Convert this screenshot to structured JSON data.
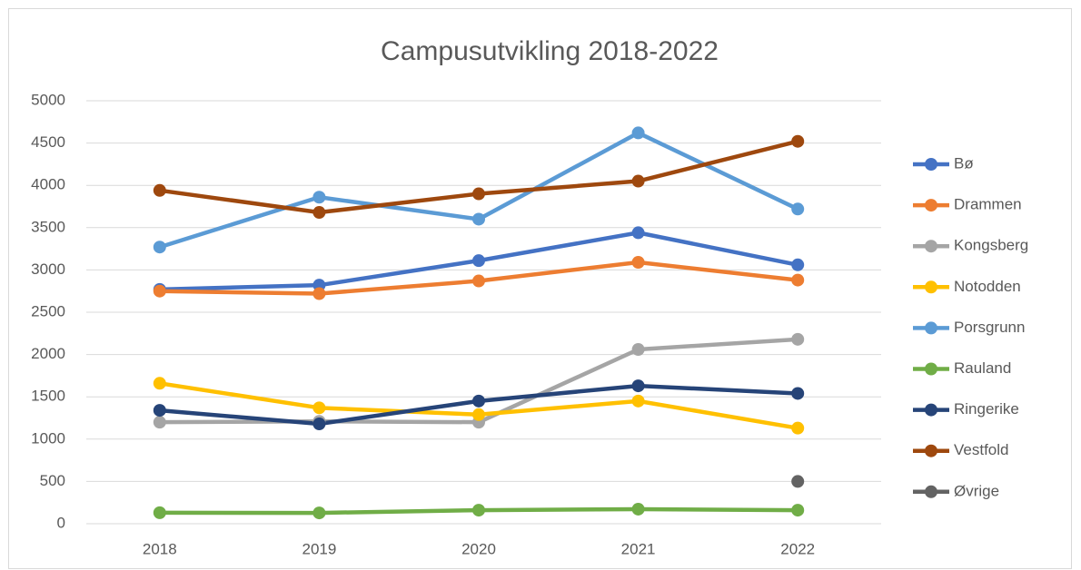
{
  "chart_data": {
    "type": "line",
    "title": "Campusutvikling 2018-2022",
    "categories": [
      "2018",
      "2019",
      "2020",
      "2021",
      "2022"
    ],
    "series": [
      {
        "name": "Bø",
        "color": "#4472c4",
        "values": [
          2770,
          2820,
          3110,
          3440,
          3060
        ]
      },
      {
        "name": "Drammen",
        "color": "#ed7d31",
        "values": [
          2750,
          2720,
          2870,
          3090,
          2880
        ]
      },
      {
        "name": "Kongsberg",
        "color": "#a5a5a5",
        "values": [
          1200,
          1210,
          1200,
          2060,
          2180
        ]
      },
      {
        "name": "Notodden",
        "color": "#ffc000",
        "values": [
          1660,
          1370,
          1290,
          1450,
          1130
        ]
      },
      {
        "name": "Porsgrunn",
        "color": "#5b9bd5",
        "values": [
          3270,
          3860,
          3600,
          4620,
          3720
        ]
      },
      {
        "name": "Rauland",
        "color": "#70ad47",
        "values": [
          130,
          128,
          160,
          172,
          160
        ]
      },
      {
        "name": "Ringerike",
        "color": "#264478",
        "values": [
          1340,
          1180,
          1450,
          1630,
          1540
        ]
      },
      {
        "name": "Vestfold",
        "color": "#9e480e",
        "values": [
          3940,
          3680,
          3900,
          4050,
          4520
        ]
      },
      {
        "name": "Øvrige",
        "color": "#636363",
        "values": [
          null,
          null,
          null,
          null,
          500
        ]
      }
    ],
    "ylim": [
      0,
      5000
    ],
    "yticks": [
      0,
      500,
      1000,
      1500,
      2000,
      2500,
      3000,
      3500,
      4000,
      4500,
      5000
    ],
    "grid": true,
    "legend": "right"
  }
}
